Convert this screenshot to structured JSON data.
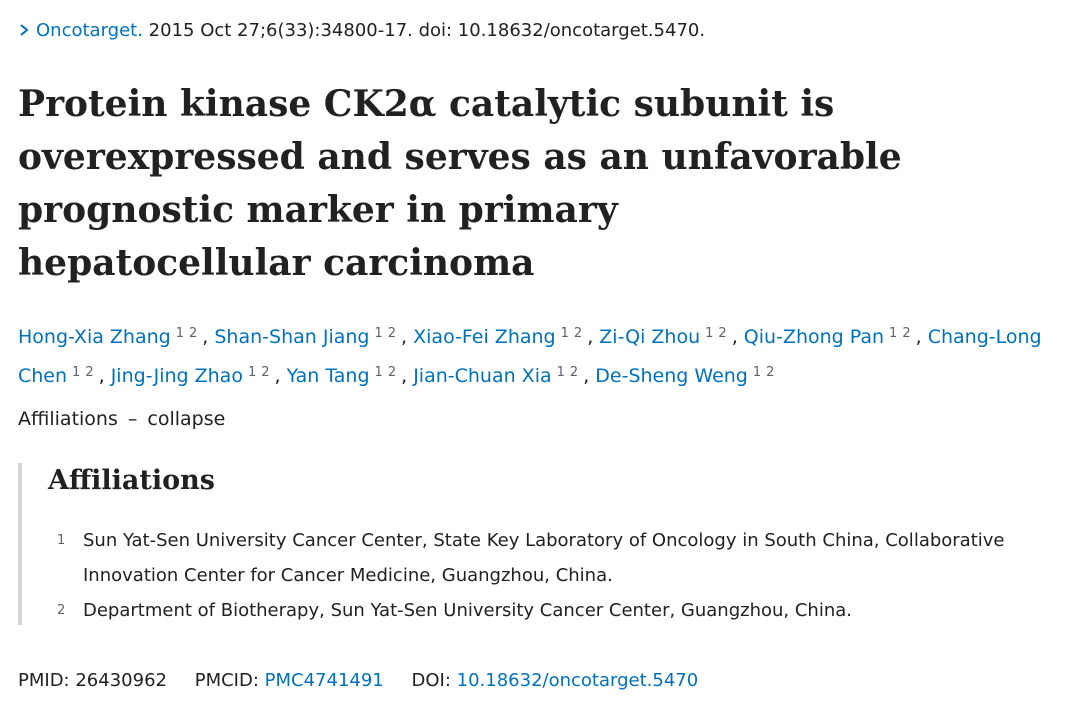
{
  "citation": {
    "journal": "Oncotarget.",
    "details": "2015 Oct 27;6(33):34800-17. doi: 10.18632/oncotarget.5470."
  },
  "title": "Protein kinase CK2α catalytic subunit is overexpressed and serves as an unfavorable prognostic marker in primary hepatocellular carcinoma",
  "authors": {
    "separator": ",",
    "list": [
      {
        "name": "Hong-Xia Zhang",
        "affs": [
          "1",
          "2"
        ]
      },
      {
        "name": "Shan-Shan Jiang",
        "affs": [
          "1",
          "2"
        ]
      },
      {
        "name": "Xiao-Fei Zhang",
        "affs": [
          "1",
          "2"
        ]
      },
      {
        "name": "Zi-Qi Zhou",
        "affs": [
          "1",
          "2"
        ]
      },
      {
        "name": "Qiu-Zhong Pan",
        "affs": [
          "1",
          "2"
        ]
      },
      {
        "name": "Chang-Long Chen",
        "affs": [
          "1",
          "2"
        ]
      },
      {
        "name": "Jing-Jing Zhao",
        "affs": [
          "1",
          "2"
        ]
      },
      {
        "name": "Yan Tang",
        "affs": [
          "1",
          "2"
        ]
      },
      {
        "name": "Jian-Chuan Xia",
        "affs": [
          "1",
          "2"
        ]
      },
      {
        "name": "De-Sheng Weng",
        "affs": [
          "1",
          "2"
        ]
      }
    ]
  },
  "affiliations_toggle": {
    "label": "Affiliations",
    "icon": "–",
    "action": "collapse"
  },
  "affiliations": {
    "heading": "Affiliations",
    "items": [
      {
        "num": "1",
        "text": "Sun Yat-Sen University Cancer Center, State Key Laboratory of Oncology in South China, Collaborative Innovation Center for Cancer Medicine, Guangzhou, China."
      },
      {
        "num": "2",
        "text": "Department of Biotherapy, Sun Yat-Sen University Cancer Center, Guangzhou, China."
      }
    ]
  },
  "ids": {
    "pmid_label": "PMID:",
    "pmid": "26430962",
    "pmcid_label": "PMCID:",
    "pmcid": "PMC4741491",
    "doi_label": "DOI:",
    "doi": "10.18632/oncotarget.5470"
  }
}
